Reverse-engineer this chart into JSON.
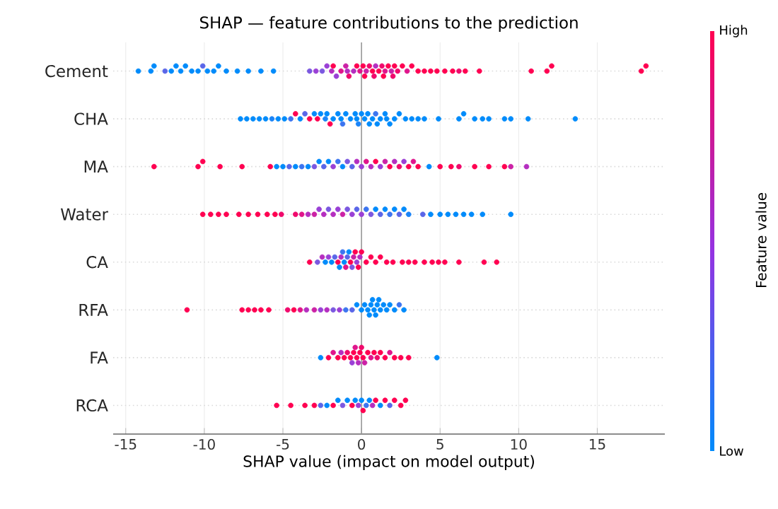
{
  "chart_data": {
    "type": "scatter",
    "title": "SHAP — feature contributions to the prediction",
    "xlabel": "SHAP value (impact on model output)",
    "clabel": "Feature value",
    "orientation": "horizontal",
    "categories": [
      "Cement",
      "CHA",
      "MA",
      "Water",
      "CA",
      "RFA",
      "FA",
      "RCA"
    ],
    "series": [
      {
        "x": [
          "Cement",
          "Cement",
          "Cement",
          "Cement",
          "Cement",
          "Cement",
          "Cement",
          "Cement",
          "Cement",
          "Cement",
          "Cement",
          "Cement",
          "Cement",
          "Cement",
          "Cement",
          "Cement",
          "Cement",
          "Cement",
          "Cement",
          "Cement",
          "Cement",
          "Cement",
          "Cement",
          "Cement",
          "Cement",
          "Cement",
          "Cement",
          "Cement",
          "Cement",
          "Cement",
          "Cement",
          "Cement",
          "Cement",
          "Cement",
          "Cement",
          "Cement",
          "Cement",
          "Cement",
          "Cement",
          "Cement",
          "Cement",
          "Cement",
          "Cement",
          "Cement",
          "Cement",
          "Cement",
          "Cement",
          "Cement",
          "Cement",
          "Cement",
          "Cement",
          "Cement",
          "Cement",
          "Cement",
          "Cement",
          "Cement",
          "Cement",
          "Cement",
          "Cement",
          "Cement",
          "Cement",
          "Cement",
          "Cement",
          "Cement",
          "Cement",
          "Cement"
        ],
        "values": [
          -14.2,
          -13.4,
          -13.2,
          -12.5,
          -12.1,
          -11.8,
          -11.5,
          -11.2,
          -10.8,
          -10.4,
          -10.1,
          -9.8,
          -9.4,
          -9.1,
          -8.6,
          -7.9,
          -7.2,
          -6.4,
          -5.6,
          -3.3,
          -2.9,
          -2.5,
          -2.2,
          -1.9,
          -1.8,
          -1.6,
          -1.3,
          -1.0,
          -0.9,
          -0.8,
          -0.5,
          -0.3,
          -0.1,
          0.1,
          0.2,
          0.3,
          0.5,
          0.7,
          0.8,
          0.9,
          1.1,
          1.3,
          1.4,
          1.5,
          1.7,
          1.9,
          2.0,
          2.1,
          2.3,
          2.6,
          2.9,
          3.2,
          3.6,
          4.0,
          4.4,
          4.8,
          5.3,
          5.8,
          6.2,
          6.6,
          7.5,
          10.8,
          11.8,
          12.1,
          17.8,
          18.1
        ],
        "colors": [
          "#008bfb",
          "#008bfb",
          "#008bfb",
          "#5a66e8",
          "#008bfb",
          "#008bfb",
          "#008bfb",
          "#008bfb",
          "#008bfb",
          "#008bfb",
          "#5a66e8",
          "#008bfb",
          "#008bfb",
          "#008bfb",
          "#008bfb",
          "#008bfb",
          "#008bfb",
          "#008bfb",
          "#008bfb",
          "#7b58e0",
          "#9a40d6",
          "#7b58e0",
          "#9a40d6",
          "#b52ec0",
          "#ff0051",
          "#9a40d6",
          "#e0158c",
          "#cc22a6",
          "#b52ec0",
          "#f00a6c",
          "#b52ec0",
          "#ff0051",
          "#e0158c",
          "#ff0051",
          "#ff0051",
          "#cc22a6",
          "#f00a6c",
          "#ff0051",
          "#f00a6c",
          "#b52ec0",
          "#ff0051",
          "#f00a6c",
          "#ff0051",
          "#e0158c",
          "#ff0051",
          "#cc22a6",
          "#f00a6c",
          "#ff0051",
          "#f00a6c",
          "#ff0051",
          "#e0158c",
          "#ff0051",
          "#ff0051",
          "#ff0051",
          "#ff0051",
          "#ff0051",
          "#ff0051",
          "#ff0051",
          "#f00a6c",
          "#ff0051",
          "#ff0051",
          "#ff0051",
          "#ff0051",
          "#ff0051",
          "#ff0051",
          "#ff0051"
        ]
      },
      {
        "x": [
          "CHA",
          "CHA",
          "CHA",
          "CHA",
          "CHA",
          "CHA",
          "CHA",
          "CHA",
          "CHA",
          "CHA",
          "CHA",
          "CHA",
          "CHA",
          "CHA",
          "CHA",
          "CHA",
          "CHA",
          "CHA",
          "CHA",
          "CHA",
          "CHA",
          "CHA",
          "CHA",
          "CHA",
          "CHA",
          "CHA",
          "CHA",
          "CHA",
          "CHA",
          "CHA",
          "CHA",
          "CHA",
          "CHA",
          "CHA",
          "CHA",
          "CHA",
          "CHA",
          "CHA",
          "CHA",
          "CHA",
          "CHA",
          "CHA",
          "CHA",
          "CHA",
          "CHA",
          "CHA",
          "CHA",
          "CHA",
          "CHA",
          "CHA",
          "CHA",
          "CHA",
          "CHA",
          "CHA",
          "CHA"
        ],
        "values": [
          -7.7,
          -7.3,
          -6.9,
          -6.5,
          -6.1,
          -5.7,
          -5.3,
          -4.9,
          -4.5,
          -4.2,
          -3.9,
          -3.6,
          -3.3,
          -3.0,
          -2.8,
          -2.6,
          -2.3,
          -2.2,
          -2.0,
          -1.8,
          -1.5,
          -1.3,
          -1.2,
          -1.0,
          -0.7,
          -0.4,
          -0.3,
          -0.2,
          0,
          0.2,
          0.4,
          0.5,
          0.7,
          0.9,
          1.0,
          1.2,
          1.5,
          1.6,
          1.8,
          2.1,
          2.4,
          2.8,
          3.2,
          3.6,
          4.0,
          4.9,
          6.2,
          6.5,
          7.2,
          7.7,
          8.1,
          9.1,
          9.5,
          10.6,
          13.6
        ],
        "colors": [
          "#008bfb",
          "#008bfb",
          "#008bfb",
          "#008bfb",
          "#008bfb",
          "#1a84f8",
          "#008bfb",
          "#008bfb",
          "#3c75f0",
          "#ff0051",
          "#008bfb",
          "#5a66e8",
          "#ff0051",
          "#008bfb",
          "#ff0051",
          "#008bfb",
          "#1a84f8",
          "#008bfb",
          "#ff0051",
          "#008bfb",
          "#008bfb",
          "#008bfb",
          "#3c75f0",
          "#008bfb",
          "#008bfb",
          "#008bfb",
          "#008bfb",
          "#1a84f8",
          "#008bfb",
          "#008bfb",
          "#008bfb",
          "#008bfb",
          "#008bfb",
          "#3c75f0",
          "#008bfb",
          "#008bfb",
          "#008bfb",
          "#008bfb",
          "#008bfb",
          "#008bfb",
          "#008bfb",
          "#008bfb",
          "#008bfb",
          "#008bfb",
          "#008bfb",
          "#008bfb",
          "#008bfb",
          "#008bfb",
          "#008bfb",
          "#008bfb",
          "#008bfb",
          "#008bfb",
          "#008bfb",
          "#008bfb",
          "#008bfb"
        ]
      },
      {
        "x": [
          "MA",
          "MA",
          "MA",
          "MA",
          "MA",
          "MA",
          "MA",
          "MA",
          "MA",
          "MA",
          "MA",
          "MA",
          "MA",
          "MA",
          "MA",
          "MA",
          "MA",
          "MA",
          "MA",
          "MA",
          "MA",
          "MA",
          "MA",
          "MA",
          "MA",
          "MA",
          "MA",
          "MA",
          "MA",
          "MA",
          "MA",
          "MA",
          "MA",
          "MA",
          "MA",
          "MA",
          "MA",
          "MA",
          "MA",
          "MA",
          "MA",
          "MA",
          "MA",
          "MA"
        ],
        "values": [
          -13.2,
          -10.4,
          -10.1,
          -9.0,
          -7.6,
          -5.8,
          -5.4,
          -5.0,
          -4.6,
          -4.2,
          -3.8,
          -3.4,
          -3.0,
          -2.7,
          -2.4,
          -2.1,
          -1.8,
          -1.5,
          -1.2,
          -0.9,
          -0.6,
          -0.3,
          0,
          0.3,
          0.6,
          0.9,
          1.2,
          1.5,
          1.8,
          2.1,
          2.4,
          2.7,
          3.0,
          3.3,
          3.6,
          4.3,
          5.0,
          5.7,
          6.2,
          7.2,
          8.1,
          9.1,
          9.5,
          10.5
        ],
        "colors": [
          "#ff0051",
          "#ff0051",
          "#ff0051",
          "#ff0051",
          "#ff0051",
          "#ff0051",
          "#008bfb",
          "#008bfb",
          "#5a66e8",
          "#008bfb",
          "#3c75f0",
          "#008bfb",
          "#7b58e0",
          "#008bfb",
          "#5a66e8",
          "#008bfb",
          "#9a40d6",
          "#3c75f0",
          "#008bfb",
          "#7b58e0",
          "#5a66e8",
          "#b52ec0",
          "#9a40d6",
          "#e0158c",
          "#b52ec0",
          "#ff0051",
          "#9a40d6",
          "#cc22a6",
          "#ff0051",
          "#b52ec0",
          "#f00a6c",
          "#9a40d6",
          "#ff0051",
          "#e0158c",
          "#ff0051",
          "#008bfb",
          "#ff0051",
          "#ff0051",
          "#f00a6c",
          "#ff0051",
          "#ff0051",
          "#ff0051",
          "#cc22a6",
          "#b52ec0"
        ]
      },
      {
        "x": [
          "Water",
          "Water",
          "Water",
          "Water",
          "Water",
          "Water",
          "Water",
          "Water",
          "Water",
          "Water",
          "Water",
          "Water",
          "Water",
          "Water",
          "Water",
          "Water",
          "Water",
          "Water",
          "Water",
          "Water",
          "Water",
          "Water",
          "Water",
          "Water",
          "Water",
          "Water",
          "Water",
          "Water",
          "Water",
          "Water",
          "Water",
          "Water",
          "Water",
          "Water",
          "Water",
          "Water",
          "Water",
          "Water",
          "Water",
          "Water",
          "Water",
          "Water",
          "Water"
        ],
        "values": [
          -10.1,
          -9.6,
          -9.1,
          -8.6,
          -7.8,
          -7.2,
          -6.6,
          -6.0,
          -5.5,
          -5.1,
          -4.2,
          -3.8,
          -3.4,
          -3.0,
          -2.7,
          -2.4,
          -2.1,
          -1.8,
          -1.5,
          -1.2,
          -0.9,
          -0.6,
          -0.3,
          0,
          0.3,
          0.6,
          0.9,
          1.2,
          1.5,
          1.8,
          2.1,
          2.4,
          2.7,
          3.0,
          3.9,
          4.4,
          5.0,
          5.5,
          6.0,
          6.5,
          7.0,
          7.7,
          9.5
        ],
        "colors": [
          "#ff0051",
          "#ff0051",
          "#ff0051",
          "#ff0051",
          "#ff0051",
          "#ff0051",
          "#ff0051",
          "#ff0051",
          "#ff0051",
          "#f00a6c",
          "#f00a6c",
          "#e0158c",
          "#b52ec0",
          "#cc22a6",
          "#9a40d6",
          "#b52ec0",
          "#7b58e0",
          "#b52ec0",
          "#9a40d6",
          "#cc22a6",
          "#7b58e0",
          "#9a40d6",
          "#5a66e8",
          "#9a40d6",
          "#3c75f0",
          "#7b58e0",
          "#008bfb",
          "#5a66e8",
          "#008bfb",
          "#3c75f0",
          "#008bfb",
          "#5a66e8",
          "#008bfb",
          "#1a84f8",
          "#5a66e8",
          "#008bfb",
          "#008bfb",
          "#008bfb",
          "#008bfb",
          "#008bfb",
          "#008bfb",
          "#008bfb",
          "#008bfb"
        ]
      },
      {
        "x": [
          "CA",
          "CA",
          "CA",
          "CA",
          "CA",
          "CA",
          "CA",
          "CA",
          "CA",
          "CA",
          "CA",
          "CA",
          "CA",
          "CA",
          "CA",
          "CA",
          "CA",
          "CA",
          "CA",
          "CA",
          "CA",
          "CA",
          "CA",
          "CA",
          "CA",
          "CA",
          "CA",
          "CA",
          "CA",
          "CA",
          "CA",
          "CA",
          "CA",
          "CA",
          "CA",
          "CA",
          "CA",
          "CA",
          "CA"
        ],
        "values": [
          -3.3,
          -2.8,
          -2.5,
          -2.3,
          -2.1,
          -1.9,
          -1.7,
          -1.5,
          -1.4,
          -1.3,
          -1.2,
          -1.1,
          -1.0,
          -0.9,
          -0.8,
          -0.7,
          -0.6,
          -0.5,
          -0.4,
          -0.3,
          -0.2,
          -0.1,
          0,
          0.3,
          0.6,
          0.9,
          1.2,
          1.6,
          2.0,
          2.6,
          3.0,
          3.4,
          4.0,
          4.5,
          4.9,
          5.3,
          6.2,
          7.8,
          8.6
        ],
        "colors": [
          "#ff0051",
          "#7b58e0",
          "#b52ec0",
          "#008bfb",
          "#9a40d6",
          "#008bfb",
          "#5a66e8",
          "#ff0051",
          "#008bfb",
          "#b52ec0",
          "#3c75f0",
          "#008bfb",
          "#e0158c",
          "#5a66e8",
          "#008bfb",
          "#ff0051",
          "#7b58e0",
          "#cc22a6",
          "#ff0051",
          "#9a40d6",
          "#ff0051",
          "#b52ec0",
          "#ff0051",
          "#ff0051",
          "#ff0051",
          "#ff0051",
          "#ff0051",
          "#ff0051",
          "#ff0051",
          "#ff0051",
          "#ff0051",
          "#ff0051",
          "#ff0051",
          "#ff0051",
          "#ff0051",
          "#ff0051",
          "#ff0051",
          "#ff0051",
          "#ff0051"
        ]
      },
      {
        "x": [
          "RFA",
          "RFA",
          "RFA",
          "RFA",
          "RFA",
          "RFA",
          "RFA",
          "RFA",
          "RFA",
          "RFA",
          "RFA",
          "RFA",
          "RFA",
          "RFA",
          "RFA",
          "RFA",
          "RFA",
          "RFA",
          "RFA",
          "RFA",
          "RFA",
          "RFA",
          "RFA",
          "RFA",
          "RFA",
          "RFA",
          "RFA",
          "RFA",
          "RFA",
          "RFA",
          "RFA",
          "RFA",
          "RFA",
          "RFA",
          "RFA"
        ],
        "values": [
          -11.1,
          -7.6,
          -7.2,
          -6.8,
          -6.4,
          -5.9,
          -4.7,
          -4.3,
          -3.9,
          -3.5,
          -3.0,
          -2.6,
          -2.2,
          -1.8,
          -1.4,
          -1.0,
          -0.6,
          -0.3,
          0,
          0.2,
          0.4,
          0.5,
          0.6,
          0.7,
          0.8,
          0.9,
          1.0,
          1.1,
          1.2,
          1.4,
          1.6,
          1.8,
          2.1,
          2.4,
          2.7
        ],
        "colors": [
          "#ff0051",
          "#ff0051",
          "#ff0051",
          "#ff0051",
          "#ff0051",
          "#ff0051",
          "#f00a6c",
          "#ff0051",
          "#e0158c",
          "#b52ec0",
          "#cc22a6",
          "#9a40d6",
          "#b52ec0",
          "#7b58e0",
          "#9a40d6",
          "#3c75f0",
          "#5a66e8",
          "#008bfb",
          "#008bfb",
          "#008bfb",
          "#008bfb",
          "#008bfb",
          "#008bfb",
          "#008bfb",
          "#008bfb",
          "#008bfb",
          "#008bfb",
          "#008bfb",
          "#008bfb",
          "#008bfb",
          "#008bfb",
          "#008bfb",
          "#008bfb",
          "#3c75f0",
          "#008bfb"
        ]
      },
      {
        "x": [
          "FA",
          "FA",
          "FA",
          "FA",
          "FA",
          "FA",
          "FA",
          "FA",
          "FA",
          "FA",
          "FA",
          "FA",
          "FA",
          "FA",
          "FA",
          "FA",
          "FA",
          "FA",
          "FA",
          "FA",
          "FA",
          "FA",
          "FA",
          "FA",
          "FA",
          "FA",
          "FA",
          "FA"
        ],
        "values": [
          -2.6,
          -2.1,
          -1.8,
          -1.5,
          -1.3,
          -1.1,
          -0.9,
          -0.7,
          -0.6,
          -0.5,
          -0.4,
          -0.3,
          -0.2,
          -0.1,
          0,
          0.1,
          0.2,
          0.4,
          0.6,
          0.8,
          1.0,
          1.2,
          1.5,
          1.8,
          2.1,
          2.5,
          3.0,
          4.8
        ],
        "colors": [
          "#008bfb",
          "#ff0051",
          "#e0158c",
          "#ff0051",
          "#b52ec0",
          "#ff0051",
          "#f00a6c",
          "#ff0051",
          "#9a40d6",
          "#ff0051",
          "#e0158c",
          "#ff0051",
          "#b52ec0",
          "#ff0051",
          "#f00a6c",
          "#ff0051",
          "#cc22a6",
          "#ff0051",
          "#e0158c",
          "#ff0051",
          "#f00a6c",
          "#ff0051",
          "#ff0051",
          "#e0158c",
          "#ff0051",
          "#ff0051",
          "#ff0051",
          "#008bfb"
        ]
      },
      {
        "x": [
          "RCA",
          "RCA",
          "RCA",
          "RCA",
          "RCA",
          "RCA",
          "RCA",
          "RCA",
          "RCA",
          "RCA",
          "RCA",
          "RCA",
          "RCA",
          "RCA",
          "RCA",
          "RCA",
          "RCA",
          "RCA",
          "RCA",
          "RCA",
          "RCA",
          "RCA",
          "RCA",
          "RCA",
          "RCA"
        ],
        "values": [
          -5.4,
          -4.5,
          -3.6,
          -3.0,
          -2.6,
          -2.2,
          -1.8,
          -1.5,
          -1.2,
          -0.9,
          -0.6,
          -0.4,
          -0.2,
          0,
          0.1,
          0.3,
          0.5,
          0.7,
          0.9,
          1.2,
          1.5,
          1.8,
          2.1,
          2.5,
          2.8
        ],
        "colors": [
          "#ff0051",
          "#ff0051",
          "#ff0051",
          "#ff0051",
          "#5a66e8",
          "#008bfb",
          "#ff0051",
          "#008bfb",
          "#7b58e0",
          "#008bfb",
          "#ff0051",
          "#008bfb",
          "#9a40d6",
          "#008bfb",
          "#ff0051",
          "#3c75f0",
          "#008bfb",
          "#b52ec0",
          "#ff0051",
          "#008bfb",
          "#ff0051",
          "#5a66e8",
          "#ff0051",
          "#ff0051",
          "#ff0051"
        ]
      }
    ],
    "xlim": [
      -15.8,
      19.3
    ],
    "xticks": [
      -15,
      -10,
      -5,
      0,
      5,
      10,
      15
    ],
    "annotations": [
      "High",
      "Low"
    ],
    "grid": true,
    "marker": "circle",
    "ref_lines": [
      {
        "axis": "x",
        "value": 0,
        "color": "#999999"
      }
    ]
  }
}
